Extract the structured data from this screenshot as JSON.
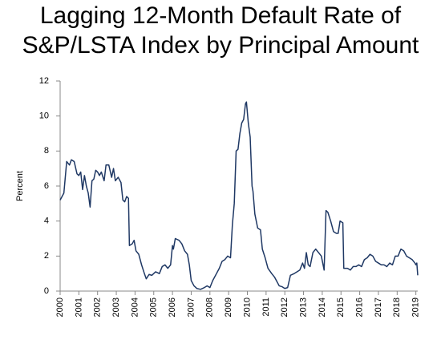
{
  "chart_data": {
    "type": "line",
    "title_lines": [
      "Lagging 12-Month Default Rate of",
      "S&P/LSTA Index by Principal Amount"
    ],
    "ylabel": "Percent",
    "x": [
      2000.0,
      2000.2,
      2000.35,
      2000.5,
      2000.6,
      2000.75,
      2000.9,
      2001.0,
      2001.1,
      2001.2,
      2001.3,
      2001.4,
      2001.5,
      2001.6,
      2001.7,
      2001.8,
      2001.9,
      2002.0,
      2002.1,
      2002.2,
      2002.35,
      2002.45,
      2002.6,
      2002.75,
      2002.85,
      2002.95,
      2003.1,
      2003.25,
      2003.35,
      2003.45,
      2003.55,
      2003.65,
      2003.7,
      2003.85,
      2003.95,
      2004.05,
      2004.2,
      2004.35,
      2004.5,
      2004.6,
      2004.75,
      2004.9,
      2005.1,
      2005.3,
      2005.45,
      2005.6,
      2005.75,
      2005.9,
      2006.0,
      2006.05,
      2006.15,
      2006.35,
      2006.5,
      2006.65,
      2006.8,
      2006.9,
      2007.0,
      2007.15,
      2007.3,
      2007.5,
      2007.7,
      2007.85,
      2008.0,
      2008.15,
      2008.35,
      2008.5,
      2008.65,
      2008.8,
      2008.95,
      2009.1,
      2009.2,
      2009.3,
      2009.4,
      2009.5,
      2009.6,
      2009.7,
      2009.8,
      2009.9,
      2009.95,
      2010.05,
      2010.15,
      2010.25,
      2010.3,
      2010.4,
      2010.55,
      2010.7,
      2010.8,
      2010.95,
      2011.1,
      2011.3,
      2011.45,
      2011.55,
      2011.7,
      2011.85,
      2012.0,
      2012.15,
      2012.3,
      2012.5,
      2012.65,
      2012.8,
      2012.95,
      2013.05,
      2013.15,
      2013.25,
      2013.35,
      2013.5,
      2013.65,
      2013.8,
      2013.95,
      2014.1,
      2014.2,
      2014.3,
      2014.45,
      2014.6,
      2014.75,
      2014.85,
      2014.95,
      2015.1,
      2015.15,
      2015.35,
      2015.5,
      2015.65,
      2015.8,
      2015.95,
      2016.1,
      2016.25,
      2016.4,
      2016.55,
      2016.7,
      2016.85,
      2017.0,
      2017.15,
      2017.3,
      2017.45,
      2017.6,
      2017.75,
      2017.9,
      2018.05,
      2018.2,
      2018.35,
      2018.5,
      2018.65,
      2018.8,
      2018.95,
      2019.0,
      2019.05,
      2019.1
    ],
    "series": [
      {
        "name": "Default rate",
        "color": "#1f3864",
        "values": [
          5.2,
          5.6,
          7.4,
          7.2,
          7.5,
          7.4,
          6.7,
          6.6,
          6.8,
          5.8,
          6.6,
          6.0,
          5.6,
          4.8,
          6.3,
          6.4,
          6.9,
          6.8,
          6.6,
          6.8,
          6.3,
          7.2,
          7.2,
          6.5,
          7.0,
          6.3,
          6.5,
          6.2,
          5.2,
          5.1,
          5.4,
          5.3,
          2.6,
          2.7,
          2.9,
          2.3,
          2.1,
          1.5,
          1.0,
          0.7,
          0.95,
          0.9,
          1.1,
          1.0,
          1.4,
          1.5,
          1.3,
          1.5,
          2.6,
          2.4,
          3.0,
          2.9,
          2.7,
          2.3,
          2.1,
          1.5,
          0.6,
          0.3,
          0.15,
          0.1,
          0.2,
          0.3,
          0.2,
          0.6,
          1.0,
          1.3,
          1.7,
          1.8,
          2.0,
          1.9,
          3.8,
          5.0,
          8.0,
          8.1,
          9.0,
          9.6,
          9.8,
          10.7,
          10.8,
          9.6,
          8.8,
          6.0,
          5.7,
          4.4,
          3.6,
          3.5,
          2.4,
          1.9,
          1.3,
          1.0,
          0.8,
          0.6,
          0.3,
          0.25,
          0.15,
          0.2,
          0.9,
          1.0,
          1.1,
          1.2,
          1.6,
          1.3,
          2.2,
          1.5,
          1.4,
          2.2,
          2.4,
          2.2,
          2.0,
          1.2,
          4.6,
          4.5,
          4.0,
          3.4,
          3.3,
          3.3,
          4.0,
          3.9,
          1.3,
          1.3,
          1.2,
          1.4,
          1.4,
          1.5,
          1.4,
          1.8,
          1.9,
          2.1,
          2.0,
          1.7,
          1.6,
          1.5,
          1.5,
          1.4,
          1.6,
          1.5,
          2.0,
          2.0,
          2.4,
          2.3,
          2.0,
          1.9,
          1.8,
          1.6,
          1.5,
          1.6,
          0.9
        ]
      }
    ],
    "xlim": [
      2000,
      2019.1
    ],
    "xticks": [
      2000,
      2001,
      2002,
      2003,
      2004,
      2005,
      2006,
      2007,
      2008,
      2009,
      2010,
      2011,
      2012,
      2013,
      2014,
      2015,
      2016,
      2017,
      2018,
      2019
    ],
    "ylim": [
      0,
      12
    ],
    "yticks": [
      0,
      2,
      4,
      6,
      8,
      10,
      12
    ],
    "grid": false
  }
}
